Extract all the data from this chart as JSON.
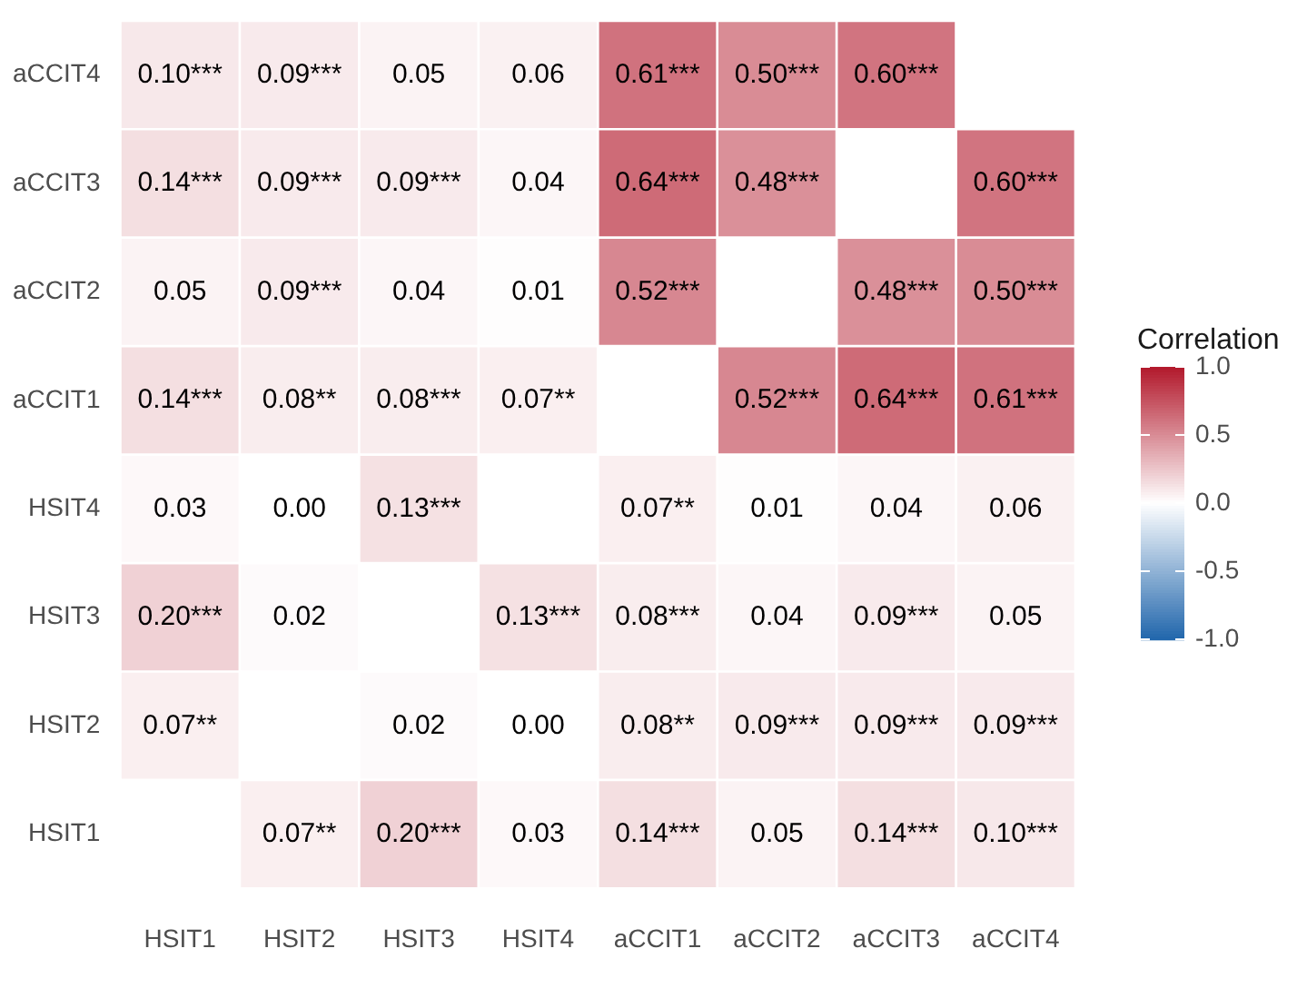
{
  "chart_data": {
    "type": "heatmap",
    "clabel": "Correlation",
    "categories": [
      "HSIT1",
      "HSIT2",
      "HSIT3",
      "HSIT4",
      "aCCIT1",
      "aCCIT2",
      "aCCIT3",
      "aCCIT4"
    ],
    "y_categories": [
      "aCCIT4",
      "aCCIT3",
      "aCCIT2",
      "aCCIT1",
      "HSIT4",
      "HSIT3",
      "HSIT2",
      "HSIT1"
    ],
    "cells": [
      [
        0.1,
        0.09,
        0.05,
        0.06,
        0.61,
        0.5,
        0.6,
        null
      ],
      [
        0.14,
        0.09,
        0.09,
        0.04,
        0.64,
        0.48,
        null,
        0.6
      ],
      [
        0.05,
        0.09,
        0.04,
        0.01,
        0.52,
        null,
        0.48,
        0.5
      ],
      [
        0.14,
        0.08,
        0.08,
        0.07,
        null,
        0.52,
        0.64,
        0.61
      ],
      [
        0.03,
        0.0,
        0.13,
        null,
        0.07,
        0.01,
        0.04,
        0.06
      ],
      [
        0.2,
        0.02,
        null,
        0.13,
        0.08,
        0.04,
        0.09,
        0.05
      ],
      [
        0.07,
        null,
        0.02,
        0.0,
        0.08,
        0.09,
        0.09,
        0.09
      ],
      [
        null,
        0.07,
        0.2,
        0.03,
        0.14,
        0.05,
        0.14,
        0.1
      ]
    ],
    "cell_labels": [
      [
        "0.10***",
        "0.09***",
        "0.05",
        "0.06",
        "0.61***",
        "0.50***",
        "0.60***",
        null
      ],
      [
        "0.14***",
        "0.09***",
        "0.09***",
        "0.04",
        "0.64***",
        "0.48***",
        null,
        "0.60***"
      ],
      [
        "0.05",
        "0.09***",
        "0.04",
        "0.01",
        "0.52***",
        null,
        "0.48***",
        "0.50***"
      ],
      [
        "0.14***",
        "0.08**",
        "0.08***",
        "0.07**",
        null,
        "0.52***",
        "0.64***",
        "0.61***"
      ],
      [
        "0.03",
        "0.00",
        "0.13***",
        null,
        "0.07**",
        "0.01",
        "0.04",
        "0.06"
      ],
      [
        "0.20***",
        "0.02",
        null,
        "0.13***",
        "0.08***",
        "0.04",
        "0.09***",
        "0.05"
      ],
      [
        "0.07**",
        null,
        "0.02",
        "0.00",
        "0.08**",
        "0.09***",
        "0.09***",
        "0.09***"
      ],
      [
        null,
        "0.07**",
        "0.20***",
        "0.03",
        "0.14***",
        "0.05",
        "0.14***",
        "0.10***"
      ]
    ],
    "clim": [
      -1,
      1
    ],
    "cticks": [
      {
        "value": -1,
        "label": "-1.0"
      },
      {
        "value": -0.5,
        "label": "-0.5"
      },
      {
        "value": 0,
        "label": "0.0"
      },
      {
        "value": 0.5,
        "label": "0.5"
      },
      {
        "value": 1,
        "label": "1.0"
      }
    ],
    "colors": [
      "#2166ac",
      "#ffffff",
      "#b2182b"
    ]
  }
}
